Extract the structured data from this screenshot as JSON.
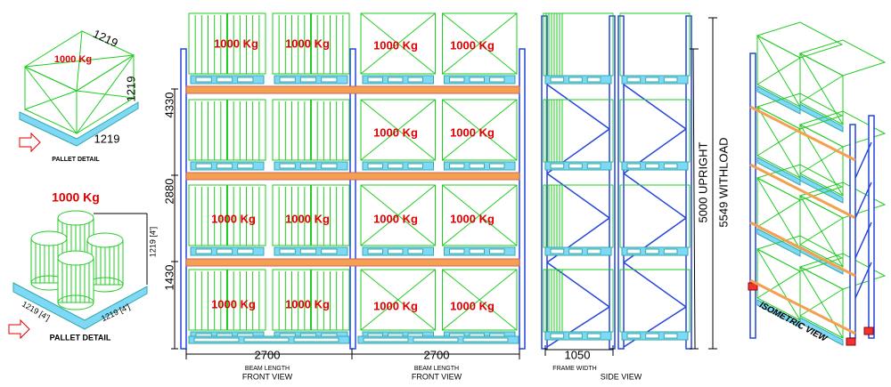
{
  "pallet_detail_box": {
    "load": "1000 Kg",
    "dims": [
      "1219",
      "1219",
      "1219"
    ],
    "caption": "PALLET DETAIL"
  },
  "pallet_detail_drums": {
    "load": "1000 Kg",
    "dims": [
      "1219 [4']",
      "1219 [4']",
      "1219 [4']"
    ],
    "caption": "PALLET DETAIL"
  },
  "front_view": {
    "levels": [
      "4330",
      "2880",
      "1430"
    ],
    "bays": [
      {
        "length": "2700",
        "length_caption": "BEAM LENGTH",
        "caption": "FRONT VIEW",
        "loads": [
          "1000 Kg",
          "1000 Kg",
          "1000 Kg",
          "1000 Kg",
          "1000 Kg",
          "1000 Kg"
        ]
      },
      {
        "length": "2700",
        "length_caption": "BEAM LENGTH",
        "caption": "FRONT VIEW",
        "loads": [
          "1000 Kg",
          "1000 Kg",
          "1000 Kg",
          "1000 Kg",
          "1000 Kg",
          "1000 Kg",
          "1000 Kg",
          "1000 Kg"
        ]
      }
    ]
  },
  "side_view": {
    "frame_width": "1050",
    "frame_caption": "FRAME WIDTH",
    "caption": "SIDE VIEW",
    "upright": "5000 UPRIGHT",
    "with_load": "5549 WITHLOAD"
  },
  "isometric_view": {
    "caption": "ISOMETRIC VIEW"
  }
}
